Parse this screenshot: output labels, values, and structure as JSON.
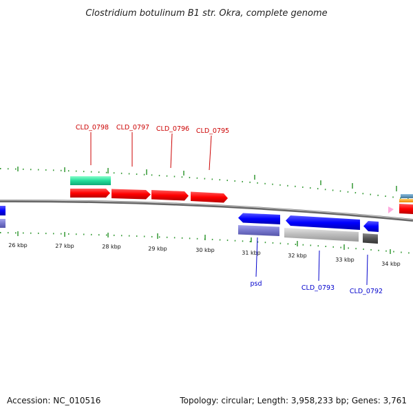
{
  "title": "Clostridium botulinum B1 str. Okra, complete genome",
  "footer": {
    "accession": "Accession: NC_010516",
    "info": "Topology: circular; Length: 3,958,233 bp; Genes: 3,761"
  },
  "scale": {
    "unit": "kbp",
    "labels": [
      "26 kbp",
      "27 kbp",
      "28 kbp",
      "29 kbp",
      "30 kbp",
      "31 kbp",
      "32 kbp",
      "33 kbp",
      "34 kbp"
    ]
  },
  "gene_labels": {
    "forward": [
      "CLD_0798",
      "CLD_0797",
      "CLD_0796",
      "CLD_0795"
    ],
    "reverse": [
      "psd",
      "CLD_0793",
      "CLD_0792"
    ]
  },
  "colors": {
    "forward_label": "#cc0000",
    "reverse_label": "#0000cc",
    "forward_cds": "#ff0000",
    "reverse_cds": "#0000ff",
    "forward_gene": "#22dd99",
    "reverse_gene_lavender": "#7777cc",
    "reverse_gene_grey": "#bbbbbb",
    "reverse_gene_dark": "#555555",
    "tick_green": "#339933",
    "backbone": "#777777"
  }
}
